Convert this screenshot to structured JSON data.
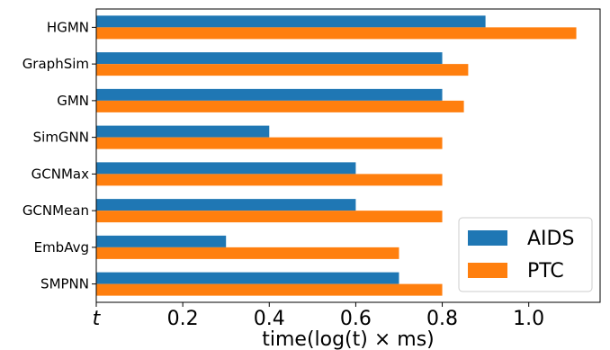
{
  "chart_data": {
    "type": "bar",
    "orientation": "horizontal",
    "categories": [
      "HGMN",
      "GraphSim",
      "GMN",
      "SimGNN",
      "GCNMax",
      "GCNMean",
      "EmbAvg",
      "SMPNN"
    ],
    "series": [
      {
        "name": "AIDS",
        "color": "#1f77b4",
        "values": [
          0.9,
          0.8,
          0.8,
          0.4,
          0.6,
          0.6,
          0.3,
          0.7
        ]
      },
      {
        "name": "PTC",
        "color": "#ff7f0e",
        "values": [
          1.11,
          0.86,
          0.85,
          0.8,
          0.8,
          0.8,
          0.7,
          0.8
        ]
      }
    ],
    "xlabel": "time(log(t) × ms)",
    "xlim": [
      0,
      1.165
    ],
    "x_ticks": [
      {
        "value": 0,
        "label": "t"
      },
      {
        "value": 0.2,
        "label": "0.2"
      },
      {
        "value": 0.4,
        "label": "0.4"
      },
      {
        "value": 0.6,
        "label": "0.6"
      },
      {
        "value": 0.8,
        "label": "0.8"
      },
      {
        "value": 1.0,
        "label": "1.0"
      }
    ],
    "grid": false,
    "legend_position": "bottom-right"
  }
}
